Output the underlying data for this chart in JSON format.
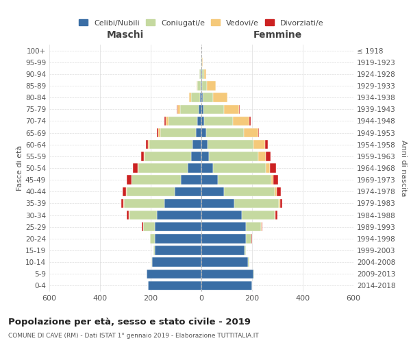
{
  "age_groups": [
    "0-4",
    "5-9",
    "10-14",
    "15-19",
    "20-24",
    "25-29",
    "30-34",
    "35-39",
    "40-44",
    "45-49",
    "50-54",
    "55-59",
    "60-64",
    "65-69",
    "70-74",
    "75-79",
    "80-84",
    "85-89",
    "90-94",
    "95-99",
    "100+"
  ],
  "birth_years": [
    "2014-2018",
    "2009-2013",
    "2004-2008",
    "1999-2003",
    "1994-1998",
    "1989-1993",
    "1984-1988",
    "1979-1983",
    "1974-1978",
    "1969-1973",
    "1964-1968",
    "1959-1963",
    "1954-1958",
    "1949-1953",
    "1944-1948",
    "1939-1943",
    "1934-1938",
    "1929-1933",
    "1924-1928",
    "1919-1923",
    "≤ 1918"
  ],
  "male": {
    "celibi": [
      210,
      215,
      195,
      185,
      185,
      185,
      175,
      145,
      105,
      80,
      55,
      40,
      35,
      22,
      15,
      10,
      5,
      3,
      2,
      0,
      0
    ],
    "coniugati": [
      1,
      2,
      3,
      5,
      18,
      45,
      110,
      160,
      190,
      195,
      195,
      185,
      170,
      140,
      115,
      75,
      35,
      12,
      5,
      2,
      0
    ],
    "vedovi": [
      0,
      0,
      0,
      0,
      0,
      1,
      1,
      2,
      2,
      2,
      2,
      3,
      5,
      8,
      10,
      10,
      8,
      5,
      2,
      0,
      0
    ],
    "divorziati": [
      0,
      0,
      0,
      0,
      1,
      3,
      8,
      10,
      15,
      18,
      18,
      10,
      8,
      5,
      5,
      2,
      1,
      0,
      0,
      0,
      0
    ]
  },
  "female": {
    "nubili": [
      200,
      205,
      185,
      170,
      175,
      175,
      160,
      130,
      90,
      65,
      45,
      30,
      25,
      18,
      10,
      8,
      5,
      3,
      2,
      0,
      0
    ],
    "coniugate": [
      1,
      2,
      3,
      6,
      22,
      60,
      130,
      175,
      200,
      210,
      210,
      195,
      180,
      150,
      115,
      80,
      42,
      18,
      8,
      2,
      0
    ],
    "vedove": [
      0,
      0,
      0,
      0,
      1,
      2,
      3,
      5,
      8,
      10,
      15,
      30,
      45,
      55,
      65,
      60,
      55,
      35,
      8,
      3,
      0
    ],
    "divorziate": [
      0,
      0,
      0,
      0,
      1,
      3,
      8,
      10,
      15,
      18,
      25,
      18,
      12,
      5,
      5,
      3,
      2,
      0,
      0,
      0,
      0
    ]
  },
  "colors": {
    "celibi": "#3a6ea5",
    "coniugati": "#c5d9a0",
    "vedovi": "#f5c97a",
    "divorziati": "#cc2222"
  },
  "xlim": 600,
  "title": "Popolazione per età, sesso e stato civile - 2019",
  "subtitle": "COMUNE DI CAVE (RM) - Dati ISTAT 1° gennaio 2019 - Elaborazione TUTTITALIA.IT",
  "xlabel_left": "Maschi",
  "xlabel_right": "Femmine",
  "ylabel_left": "Fasce di età",
  "ylabel_right": "Anni di nascita",
  "legend_labels": [
    "Celibi/Nubili",
    "Coniugati/e",
    "Vedovi/e",
    "Divorziati/e"
  ],
  "background_color": "#ffffff",
  "grid_color": "#dddddd"
}
